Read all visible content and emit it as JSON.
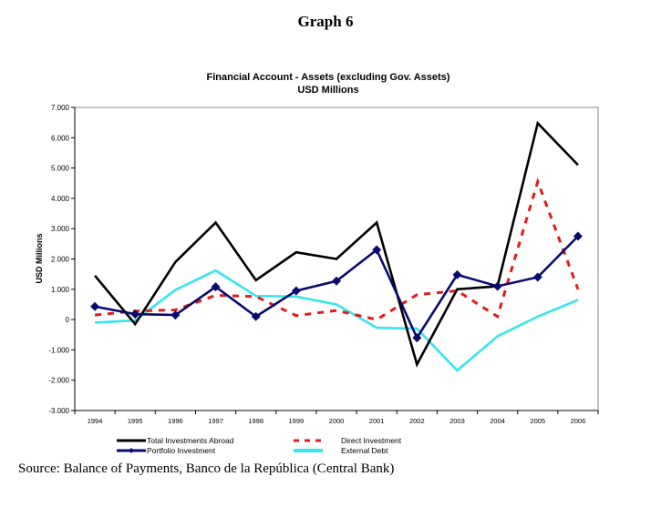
{
  "page": {
    "graph_label": "Graph 6",
    "source": "Source: Balance of Payments, Banco de la República (Central Bank)"
  },
  "chart_data": {
    "type": "line",
    "title": "Financial Account - Assets (excluding Gov. Assets)",
    "subtitle": "USD Millions",
    "xlabel": "",
    "ylabel": "USD Millions",
    "ylim": [
      -3000,
      7000
    ],
    "yticks": [
      7000,
      6000,
      5000,
      4000,
      3000,
      2000,
      1000,
      0,
      -1000,
      -2000,
      -3000
    ],
    "ytick_labels": [
      "7.000",
      "6.000",
      "5.000",
      "4.000",
      "3.000",
      "2.000",
      "1.000",
      "0",
      "-1.000",
      "-2.000",
      "-3.000"
    ],
    "grid": false,
    "legend_position": "bottom",
    "categories": [
      "1994",
      "1995",
      "1996",
      "1997",
      "1998",
      "1999",
      "2000",
      "2001",
      "2002",
      "2003",
      "2004",
      "2005",
      "2006"
    ],
    "series": [
      {
        "name": "Total Investments Abroad",
        "color": "#000000",
        "style": "solid",
        "marker": "none",
        "values": [
          1450,
          -150,
          1900,
          3200,
          1300,
          2220,
          2000,
          3200,
          -1480,
          1000,
          1100,
          6480,
          5100
        ]
      },
      {
        "name": "Direct Investment",
        "color": "#e31a1c",
        "style": "dashed",
        "marker": "none",
        "values": [
          150,
          280,
          320,
          800,
          760,
          130,
          300,
          0,
          820,
          950,
          100,
          4550,
          1000
        ]
      },
      {
        "name": "Portfolio Investment",
        "color": "#0a0a6e",
        "style": "solid",
        "marker": "diamond",
        "values": [
          430,
          180,
          150,
          1080,
          100,
          950,
          1270,
          2300,
          -600,
          1480,
          1100,
          1400,
          2750
        ]
      },
      {
        "name": "External Debt",
        "color": "#33e6f0",
        "style": "solid",
        "marker": "none",
        "values": [
          -100,
          -30,
          980,
          1620,
          780,
          760,
          500,
          -270,
          -300,
          -1680,
          -550,
          100,
          650
        ]
      }
    ]
  }
}
